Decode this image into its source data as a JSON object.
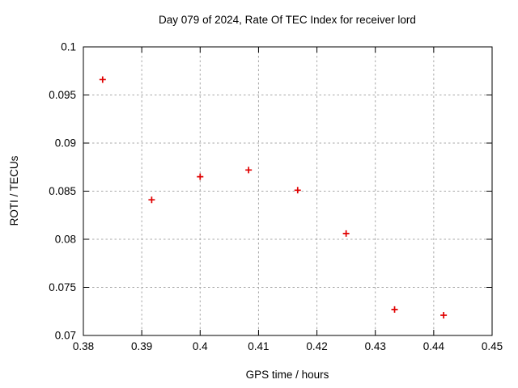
{
  "chart_data": {
    "type": "scatter",
    "title": "Day 079 of 2024, Rate Of TEC Index for receiver lord",
    "xlabel": "GPS time / hours",
    "ylabel": "ROTI / TECUs",
    "xlim": [
      0.38,
      0.45
    ],
    "ylim": [
      0.07,
      0.1
    ],
    "x_ticks": [
      0.38,
      0.39,
      0.4,
      0.41,
      0.42,
      0.43,
      0.44,
      0.45
    ],
    "x_tick_labels": [
      "0.38",
      "0.39",
      "0.4",
      "0.41",
      "0.42",
      "0.43",
      "0.44",
      "0.45"
    ],
    "y_ticks": [
      0.07,
      0.075,
      0.08,
      0.085,
      0.09,
      0.095,
      0.1
    ],
    "y_tick_labels": [
      "0.07",
      "0.075",
      "0.08",
      "0.085",
      "0.09",
      "0.095",
      "0.1"
    ],
    "grid": true,
    "legend": "none",
    "marker": "plus",
    "colors": {
      "marker": "#e00000",
      "grid": "#a8a8a8",
      "border": "#000000",
      "background": "#ffffff"
    },
    "series": [
      {
        "name": "ROTI",
        "x": [
          0.3833,
          0.3917,
          0.4,
          0.4083,
          0.4167,
          0.425,
          0.4333,
          0.4417
        ],
        "y": [
          0.0966,
          0.0841,
          0.0865,
          0.0872,
          0.0851,
          0.0806,
          0.0727,
          0.0721
        ]
      }
    ]
  }
}
